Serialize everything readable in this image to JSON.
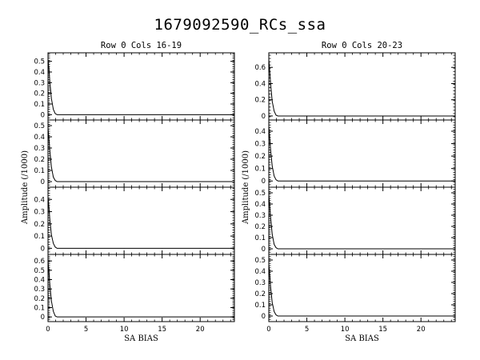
{
  "title": "1679092590_RCs_ssa",
  "colors": {
    "axes": "#000000",
    "line": "#000000",
    "background": "#ffffff"
  },
  "chart_data": {
    "type": "line",
    "xlabel": "SA BIAS",
    "ylabel": "Amplitude (/1000)",
    "xlim": [
      0,
      24.5
    ],
    "x_ticks": [
      0,
      5,
      10,
      15,
      20
    ],
    "grid": false,
    "columns": [
      {
        "title": "Row  0  Cols 16-19",
        "panels": [
          {
            "ylim": [
              -0.05,
              0.58
            ],
            "y_ticks": [
              0,
              0.1,
              0.2,
              0.3,
              0.4,
              0.5
            ],
            "series_points": {
              "x": [
                0,
                0.1,
                0.25,
                0.45,
                0.7,
                0.95,
                1.2,
                24.5
              ],
              "y": [
                0.52,
                0.45,
                0.3,
                0.15,
                0.05,
                0.01,
                0,
                0
              ]
            }
          },
          {
            "ylim": [
              -0.05,
              0.55
            ],
            "y_ticks": [
              0,
              0.1,
              0.2,
              0.3,
              0.4,
              0.5
            ],
            "series_points": {
              "x": [
                0,
                0.1,
                0.25,
                0.45,
                0.7,
                0.95,
                1.2,
                24.5
              ],
              "y": [
                0.48,
                0.4,
                0.27,
                0.13,
                0.04,
                0.01,
                0,
                0
              ]
            }
          },
          {
            "ylim": [
              -0.05,
              0.5
            ],
            "y_ticks": [
              0,
              0.1,
              0.2,
              0.3,
              0.4
            ],
            "series_points": {
              "x": [
                0,
                0.1,
                0.25,
                0.45,
                0.7,
                0.95,
                1.2,
                24.5
              ],
              "y": [
                0.42,
                0.35,
                0.23,
                0.11,
                0.04,
                0.01,
                0,
                0
              ]
            }
          },
          {
            "ylim": [
              -0.05,
              0.67
            ],
            "y_ticks": [
              0,
              0.1,
              0.2,
              0.3,
              0.4,
              0.5,
              0.6
            ],
            "series_points": {
              "x": [
                0,
                0.1,
                0.25,
                0.45,
                0.7,
                0.95,
                1.2,
                24.5
              ],
              "y": [
                0.6,
                0.5,
                0.34,
                0.17,
                0.06,
                0.01,
                0,
                0
              ]
            }
          }
        ]
      },
      {
        "title": "Row  0  Cols 20-23",
        "panels": [
          {
            "ylim": [
              -0.05,
              0.78
            ],
            "y_ticks": [
              0,
              0.2,
              0.4,
              0.6
            ],
            "series_points": {
              "x": [
                0,
                0.1,
                0.25,
                0.45,
                0.7,
                0.95,
                1.2,
                24.5
              ],
              "y": [
                0.7,
                0.58,
                0.38,
                0.18,
                0.06,
                0.01,
                0,
                0
              ]
            }
          },
          {
            "ylim": [
              -0.05,
              0.49
            ],
            "y_ticks": [
              0,
              0.1,
              0.2,
              0.3,
              0.4
            ],
            "series_points": {
              "x": [
                0,
                0.1,
                0.25,
                0.45,
                0.7,
                0.95,
                1.2,
                24.5
              ],
              "y": [
                0.44,
                0.36,
                0.24,
                0.12,
                0.04,
                0.01,
                0,
                0
              ]
            }
          },
          {
            "ylim": [
              -0.05,
              0.55
            ],
            "y_ticks": [
              0,
              0.1,
              0.2,
              0.3,
              0.4,
              0.5
            ],
            "series_points": {
              "x": [
                0,
                0.1,
                0.25,
                0.45,
                0.7,
                0.95,
                1.2,
                24.5
              ],
              "y": [
                0.48,
                0.4,
                0.27,
                0.13,
                0.04,
                0.01,
                0,
                0
              ]
            }
          },
          {
            "ylim": [
              -0.05,
              0.55
            ],
            "y_ticks": [
              0,
              0.1,
              0.2,
              0.3,
              0.4,
              0.5
            ],
            "series_points": {
              "x": [
                0,
                0.1,
                0.25,
                0.45,
                0.7,
                0.95,
                1.2,
                24.5
              ],
              "y": [
                0.46,
                0.38,
                0.25,
                0.12,
                0.04,
                0.01,
                0,
                0
              ]
            }
          }
        ]
      }
    ]
  }
}
